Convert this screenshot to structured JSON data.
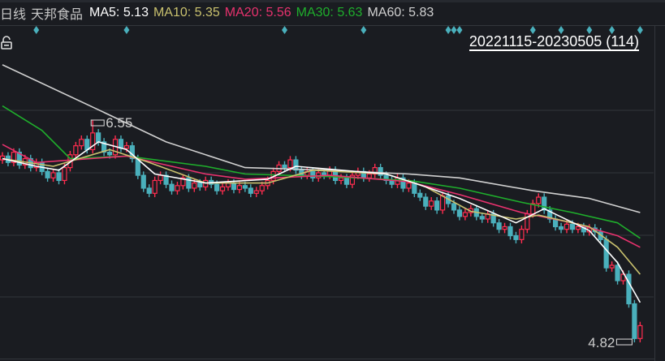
{
  "header": {
    "period": "日线",
    "stock_name": "天邦食品",
    "ma_labels": [
      {
        "label": "MA5: 5.13",
        "color": "#ffffff"
      },
      {
        "label": "MA10: 5.35",
        "color": "#c9c16e"
      },
      {
        "label": "MA20: 5.56",
        "color": "#e8326e"
      },
      {
        "label": "MA30: 5.63",
        "color": "#1fae2c"
      },
      {
        "label": "MA60: 5.83",
        "color": "#d0d0d0"
      }
    ],
    "date_range": "20221115-20230505 (114)",
    "lock_icon": "unlocked-padlock-icon"
  },
  "chart_data": {
    "type": "candlestick",
    "count": 114,
    "price_range": [
      4.72,
      7.1
    ],
    "grid": true,
    "colors": {
      "up": "#ff2d4f",
      "down": "#4ab0bc",
      "background": "#1a1c21",
      "grid": "#33363c",
      "marker": "#4ab0bc"
    },
    "close": [
      6.27,
      6.22,
      6.3,
      6.2,
      6.25,
      6.18,
      6.22,
      6.15,
      6.1,
      6.14,
      6.08,
      6.18,
      6.28,
      6.35,
      6.4,
      6.32,
      6.45,
      6.38,
      6.3,
      6.28,
      6.4,
      6.33,
      6.35,
      6.25,
      6.12,
      6.02,
      5.98,
      6.08,
      6.12,
      6.05,
      6.0,
      6.04,
      6.1,
      6.02,
      6.06,
      6.03,
      6.08,
      6.05,
      6.0,
      6.03,
      6.06,
      6.01,
      6.04,
      6.02,
      5.98,
      6.0,
      6.04,
      6.08,
      6.15,
      6.2,
      6.18,
      6.24,
      6.16,
      6.12,
      6.15,
      6.1,
      6.14,
      6.12,
      6.16,
      6.08,
      6.1,
      6.05,
      6.12,
      6.15,
      6.1,
      6.13,
      6.18,
      6.12,
      6.08,
      6.05,
      6.1,
      6.02,
      6.06,
      5.98,
      5.95,
      5.88,
      5.92,
      5.85,
      5.96,
      5.9,
      5.85,
      5.8,
      5.83,
      5.86,
      5.8,
      5.78,
      5.82,
      5.75,
      5.7,
      5.72,
      5.65,
      5.62,
      5.7,
      5.82,
      5.9,
      5.95,
      5.85,
      5.78,
      5.72,
      5.7,
      5.74,
      5.7,
      5.72,
      5.68,
      5.71,
      5.68,
      5.62,
      5.4,
      5.42,
      5.3,
      5.35,
      5.12,
      4.85,
      4.95
    ],
    "first_open": 6.24,
    "extremes": {
      "high": {
        "index": 16,
        "value": 6.55,
        "label": "6.55"
      },
      "low": {
        "index": 112,
        "value": 4.82,
        "label": "4.82"
      }
    },
    "event_marker_indices": [
      6,
      22,
      50,
      64,
      79,
      80,
      81,
      94,
      99,
      104,
      108,
      113
    ],
    "moving_averages": [
      {
        "name": "MA60",
        "color": "#d0d0d0",
        "points": [
          [
            0,
            6.98
          ],
          [
            17,
            6.63
          ],
          [
            29,
            6.38
          ],
          [
            43,
            6.18
          ],
          [
            58,
            6.16
          ],
          [
            72,
            6.13
          ],
          [
            81,
            6.1
          ],
          [
            94,
            6.0
          ],
          [
            104,
            5.94
          ],
          [
            113,
            5.83
          ]
        ]
      },
      {
        "name": "MA30",
        "color": "#1fae2c",
        "points": [
          [
            0,
            6.66
          ],
          [
            7,
            6.47
          ],
          [
            12,
            6.25
          ],
          [
            22,
            6.27
          ],
          [
            36,
            6.19
          ],
          [
            43,
            6.13
          ],
          [
            58,
            6.11
          ],
          [
            72,
            6.08
          ],
          [
            81,
            6.02
          ],
          [
            92,
            5.91
          ],
          [
            101,
            5.83
          ],
          [
            109,
            5.75
          ],
          [
            113,
            5.63
          ]
        ]
      },
      {
        "name": "MA20",
        "color": "#e8326e",
        "points": [
          [
            0,
            6.36
          ],
          [
            6,
            6.22
          ],
          [
            22,
            6.27
          ],
          [
            36,
            6.13
          ],
          [
            43,
            6.09
          ],
          [
            58,
            6.12
          ],
          [
            72,
            6.07
          ],
          [
            81,
            5.97
          ],
          [
            92,
            5.83
          ],
          [
            101,
            5.75
          ],
          [
            109,
            5.65
          ],
          [
            113,
            5.56
          ]
        ]
      },
      {
        "name": "MA10",
        "color": "#c9c16e",
        "points": [
          [
            0,
            6.25
          ],
          [
            9,
            6.19
          ],
          [
            19,
            6.32
          ],
          [
            26,
            6.22
          ],
          [
            36,
            6.06
          ],
          [
            47,
            6.06
          ],
          [
            55,
            6.16
          ],
          [
            68,
            6.13
          ],
          [
            75,
            6.03
          ],
          [
            83,
            5.84
          ],
          [
            91,
            5.78
          ],
          [
            95,
            5.81
          ],
          [
            104,
            5.72
          ],
          [
            109,
            5.56
          ],
          [
            113,
            5.35
          ]
        ]
      },
      {
        "name": "MA5",
        "color": "#ffffff",
        "points": [
          [
            0,
            6.25
          ],
          [
            6,
            6.19
          ],
          [
            10,
            6.16
          ],
          [
            17,
            6.38
          ],
          [
            22,
            6.32
          ],
          [
            27,
            6.13
          ],
          [
            36,
            6.06
          ],
          [
            47,
            6.09
          ],
          [
            52,
            6.19
          ],
          [
            68,
            6.13
          ],
          [
            73,
            6.06
          ],
          [
            81,
            5.94
          ],
          [
            91,
            5.75
          ],
          [
            96,
            5.86
          ],
          [
            104,
            5.69
          ],
          [
            109,
            5.44
          ],
          [
            113,
            5.13
          ]
        ]
      }
    ]
  }
}
